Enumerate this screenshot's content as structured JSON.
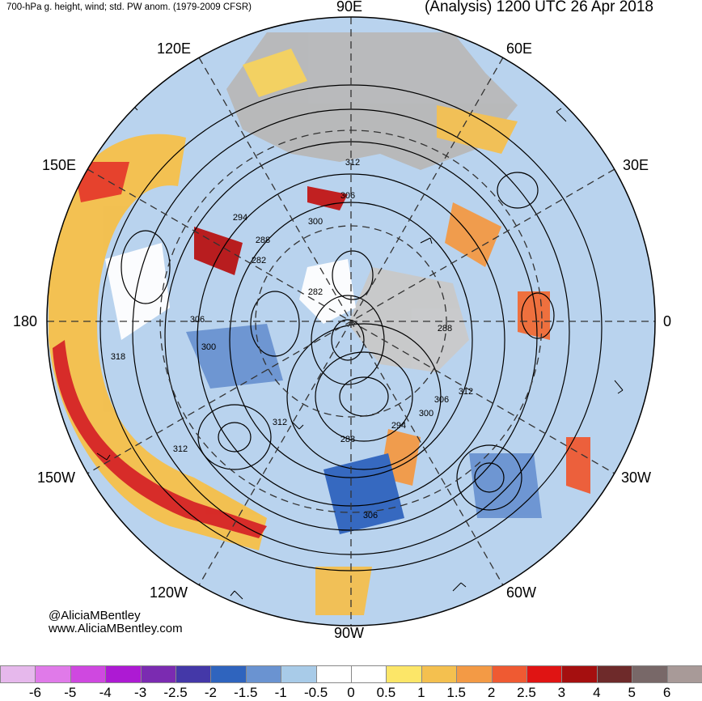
{
  "header": {
    "left_title": "700-hPa g. height, wind; std. PW anom. (1979-2009 CFSR)",
    "right_title": "(Analysis) 1200 UTC 26 Apr 2018"
  },
  "longitude_labels": {
    "e90": "90E",
    "e60": "60E",
    "e30": "30E",
    "zero": "0",
    "w30": "30W",
    "w60": "60W",
    "w90": "90W",
    "w120": "120W",
    "w150": "150W",
    "dateline": "180",
    "e150": "150E",
    "e120": "120E"
  },
  "contour_labels": [
    "312",
    "306",
    "300",
    "294",
    "288",
    "282",
    "282",
    "306",
    "300",
    "318",
    "288",
    "306",
    "312",
    "300",
    "294",
    "288",
    "312",
    "306",
    "312"
  ],
  "credit": {
    "handle": "@AliciaMBentley",
    "website": "www.AliciaMBentley.com"
  },
  "legend": {
    "colors": [
      "#e6b8ec",
      "#e07ae9",
      "#cf48e0",
      "#ad1ad3",
      "#7b2bb1",
      "#4438a8",
      "#2f64be",
      "#6a93d1",
      "#a8cbe8",
      "#ffffff",
      "#ffffff",
      "#fce668",
      "#f4c04f",
      "#f39a45",
      "#ef5a32",
      "#e01413",
      "#a50f0f",
      "#6e2a2a",
      "#786868",
      "#a89a98"
    ],
    "ticks": [
      "-6",
      "-5",
      "-4",
      "-3",
      "-2.5",
      "-2",
      "-1.5",
      "-1",
      "-0.5",
      "0",
      "0.5",
      "1",
      "1.5",
      "2",
      "2.5",
      "3",
      "4",
      "5",
      "6"
    ]
  }
}
